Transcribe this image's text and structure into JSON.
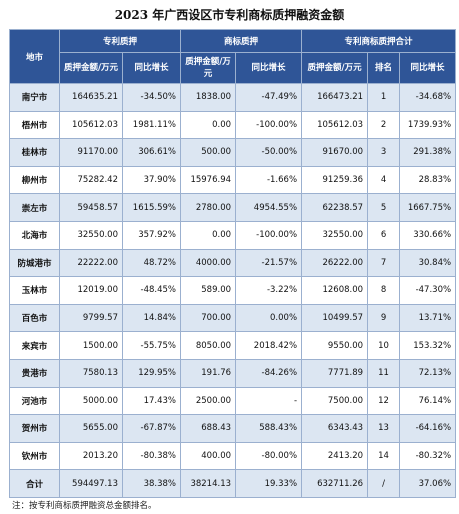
{
  "title": "2023 年广西设区市专利商标质押融资金额",
  "table": {
    "header": {
      "city": "地市",
      "groups": [
        "专利质押",
        "商标质押",
        "专利商标质押合计"
      ],
      "amount": "质押金额/万元",
      "growth": "同比增长",
      "rank": "排名"
    },
    "rows": [
      [
        "南宁市",
        "164635.21",
        "-34.50%",
        "1838.00",
        "-47.49%",
        "166473.21",
        "1",
        "-34.68%"
      ],
      [
        "梧州市",
        "105612.03",
        "1981.11%",
        "0.00",
        "-100.00%",
        "105612.03",
        "2",
        "1739.93%"
      ],
      [
        "桂林市",
        "91170.00",
        "306.61%",
        "500.00",
        "-50.00%",
        "91670.00",
        "3",
        "291.38%"
      ],
      [
        "柳州市",
        "75282.42",
        "37.90%",
        "15976.94",
        "-1.66%",
        "91259.36",
        "4",
        "28.83%"
      ],
      [
        "崇左市",
        "59458.57",
        "1615.59%",
        "2780.00",
        "4954.55%",
        "62238.57",
        "5",
        "1667.75%"
      ],
      [
        "北海市",
        "32550.00",
        "357.92%",
        "0.00",
        "-100.00%",
        "32550.00",
        "6",
        "330.66%"
      ],
      [
        "防城港市",
        "22222.00",
        "48.72%",
        "4000.00",
        "-21.57%",
        "26222.00",
        "7",
        "30.84%"
      ],
      [
        "玉林市",
        "12019.00",
        "-48.45%",
        "589.00",
        "-3.22%",
        "12608.00",
        "8",
        "-47.30%"
      ],
      [
        "百色市",
        "9799.57",
        "14.84%",
        "700.00",
        "0.00%",
        "10499.57",
        "9",
        "13.71%"
      ],
      [
        "来宾市",
        "1500.00",
        "-55.75%",
        "8050.00",
        "2018.42%",
        "9550.00",
        "10",
        "153.32%"
      ],
      [
        "贵港市",
        "7580.13",
        "129.95%",
        "191.76",
        "-84.26%",
        "7771.89",
        "11",
        "72.13%"
      ],
      [
        "河池市",
        "5000.00",
        "17.43%",
        "2500.00",
        "-",
        "7500.00",
        "12",
        "76.14%"
      ],
      [
        "贺州市",
        "5655.00",
        "-67.87%",
        "688.43",
        "588.43%",
        "6343.43",
        "13",
        "-64.16%"
      ],
      [
        "钦州市",
        "2013.20",
        "-80.38%",
        "400.00",
        "-80.00%",
        "2413.20",
        "14",
        "-80.32%"
      ],
      [
        "合计",
        "594497.13",
        "38.38%",
        "38214.13",
        "19.33%",
        "632711.26",
        "/",
        "37.06%"
      ]
    ]
  },
  "note": "注：按专利商标质押融资总金额排名。"
}
